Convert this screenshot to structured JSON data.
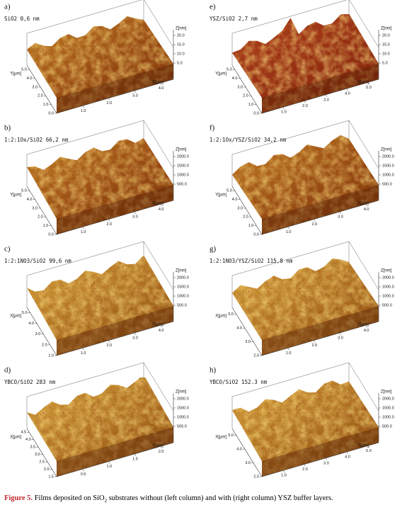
{
  "panels": [
    {
      "letter": "a)",
      "title": "SiO2 0,6 nm",
      "z_label": "Z[nm]",
      "z_ticks": [
        "20.0",
        "15.0",
        "10.0",
        "5.0"
      ],
      "base_label": "X[µm]",
      "base_ticks": [
        "1.0",
        "2.0",
        "3.0",
        "4.0"
      ],
      "side_label": "Y[µm]",
      "side_ticks": [
        "0.0",
        "1.0",
        "2.0",
        "3.0",
        "4.0",
        "5.0"
      ]
    },
    {
      "letter": "b)",
      "title": "1:2:1Ox/SiO2 66,2 nm",
      "z_label": "Z[nm]",
      "z_ticks": [
        "2000.0",
        "1500.0",
        "1000.0",
        "500.0"
      ],
      "base_label": "X[µm]",
      "base_ticks": [
        "1.0",
        "2.0",
        "3.0",
        "4.0"
      ],
      "side_label": "Y[µm]",
      "side_ticks": [
        "0.0",
        "1.0",
        "2.0",
        "3.0",
        "4.0",
        "5.0"
      ]
    },
    {
      "letter": "c)",
      "title": "1:2:1NO3/SiO2 99,6 nm",
      "z_label": "Z[nm]",
      "z_ticks": [
        "2000.0",
        "1500.0",
        "1000.0",
        "500.0"
      ],
      "base_label": "Y[µm]",
      "base_ticks": [
        "1.0",
        "2.0",
        "3.0",
        "4.0"
      ],
      "side_label": "X[µm]",
      "side_ticks": [
        "1.0",
        "2.0",
        "3.0",
        "4.0",
        "5.0"
      ]
    },
    {
      "letter": "d)",
      "title": "YBCO/SiO2 283 nm",
      "z_label": "Z[nm]",
      "z_ticks": [
        "2000.0",
        "1500.0",
        "1000.0",
        "500.0"
      ],
      "base_label": "Y[µm]",
      "base_ticks": [
        "0.5",
        "1.0",
        "1.5",
        "2.0"
      ],
      "side_label": "X[µm]",
      "side_ticks": [
        "1.5",
        "2.0",
        "2.5",
        "3.0",
        "3.5",
        "4.0",
        "4.5"
      ]
    },
    {
      "letter": "e)",
      "title": "YSZ/SiO2 2,7 nm",
      "z_label": "Z[nm]",
      "z_ticks": [
        "20.0",
        "15.0",
        "10.0",
        "5.0"
      ],
      "base_label": "X[µm]",
      "base_ticks": [
        "1.0",
        "2.0",
        "3.0",
        "4.0",
        "5.0"
      ],
      "side_label": "Y[µm]",
      "side_ticks": [
        "0.0",
        "1.0",
        "2.0",
        "3.0",
        "4.0",
        "5.0"
      ]
    },
    {
      "letter": "f)",
      "title": "1:2:1Ox/YSZ/SiO2 34,2 nm",
      "z_label": "Z[nm]",
      "z_ticks": [
        "2000.0",
        "1500.0",
        "1000.0",
        "500.0"
      ],
      "base_label": "X[µm]",
      "base_ticks": [
        "1.0",
        "2.0",
        "3.0",
        "4.0"
      ],
      "side_label": "Y[µm]",
      "side_ticks": [
        "0.0",
        "1.0",
        "2.0",
        "3.0",
        "4.0",
        "5.0"
      ]
    },
    {
      "letter": "g)",
      "title": "1:2:1NO3/YSZ/SiO2 115,8 nm",
      "z_label": "Z[nm]",
      "z_ticks": [
        "2000.0",
        "1500.0",
        "1000.0",
        "500.0"
      ],
      "base_label": "Y[µm]",
      "base_ticks": [
        "1.0",
        "2.0",
        "3.0",
        "4.0"
      ],
      "side_label": "X[µm]",
      "side_ticks": [
        "2.0",
        "3.0",
        "4.0",
        "5.0"
      ]
    },
    {
      "letter": "h)",
      "title": "YBCO/SiO2 152.3 nm",
      "z_label": "Z[nm]",
      "z_ticks": [
        "2000.0",
        "1500.0",
        "1000.0",
        "500.0"
      ],
      "base_label": "Y[µm]",
      "base_ticks": [
        "1.0",
        "2.0",
        "3.0",
        "4.0",
        "5.0"
      ],
      "side_label": "X[µm]",
      "side_ticks": [
        "2.0",
        "3.0",
        "4.0",
        "5.0"
      ]
    }
  ],
  "caption": {
    "label": "Figure 5.",
    "text_before": "Films deposited on SiO",
    "subscript": "2",
    "text_after": " substrates without (left column) and with (right column) YSZ buffer layers."
  }
}
